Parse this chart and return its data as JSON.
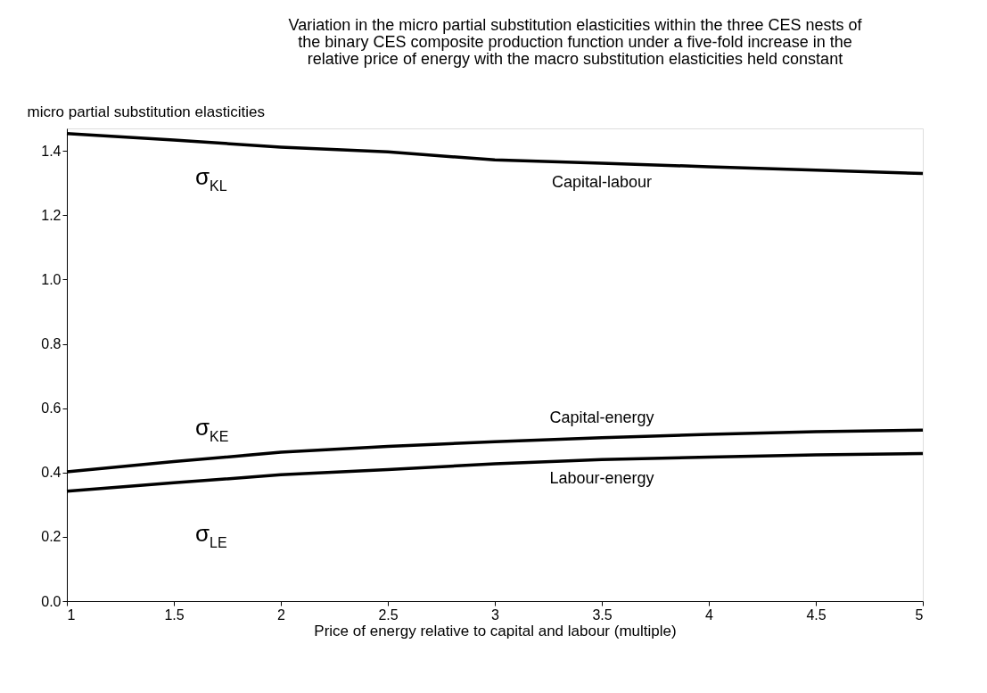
{
  "chart_data": {
    "type": "line",
    "title": "Variation in the micro partial substitution elasticities within the three CES nests of\nthe binary CES composite production function under a five-fold increase in the\nrelative price of energy with the macro substitution elasticities held constant",
    "xlabel": "Price of energy relative to capital and labour (multiple)",
    "ylabel": "micro partial substitution elasticities",
    "x": [
      1,
      1.5,
      2,
      2.5,
      3,
      3.5,
      4,
      4.5,
      5
    ],
    "series": [
      {
        "name": "Capital-labour",
        "color": "#000000",
        "values": [
          1.454,
          1.434,
          1.412,
          1.397,
          1.372,
          1.362,
          1.351,
          1.34,
          1.33
        ]
      },
      {
        "name": "Capital-energy",
        "color": "#000000",
        "values": [
          0.402,
          0.434,
          0.463,
          0.481,
          0.496,
          0.508,
          0.519,
          0.527,
          0.532
        ]
      },
      {
        "name": "Labour-energy",
        "color": "#000000",
        "values": [
          0.342,
          0.368,
          0.393,
          0.409,
          0.427,
          0.44,
          0.448,
          0.455,
          0.459
        ]
      }
    ],
    "annotations": [
      "σ$_{KL}$",
      "σ$_{KE}$",
      "σ$_{LE}$"
    ],
    "xlim": [
      1,
      5
    ],
    "ylim": [
      0,
      1.47
    ],
    "xticks": [
      1,
      1.5,
      2,
      2.5,
      3,
      3.5,
      4,
      4.5,
      5
    ],
    "yticks": [
      {
        "value": 0,
        "label": "0.0"
      },
      {
        "value": 0.2,
        "label": "0.2"
      },
      {
        "value": 0.4,
        "label": "0.4"
      },
      {
        "value": 0.6,
        "label": "0.6"
      },
      {
        "value": 0.8,
        "label": "0.8"
      },
      {
        "value": 1.0,
        "label": "1.0"
      },
      {
        "value": 1.2,
        "label": "1.2"
      },
      {
        "value": 1.4,
        "label": "1.4"
      }
    ],
    "grid": false,
    "legend": false,
    "marker": "none",
    "line_style": "solid"
  }
}
